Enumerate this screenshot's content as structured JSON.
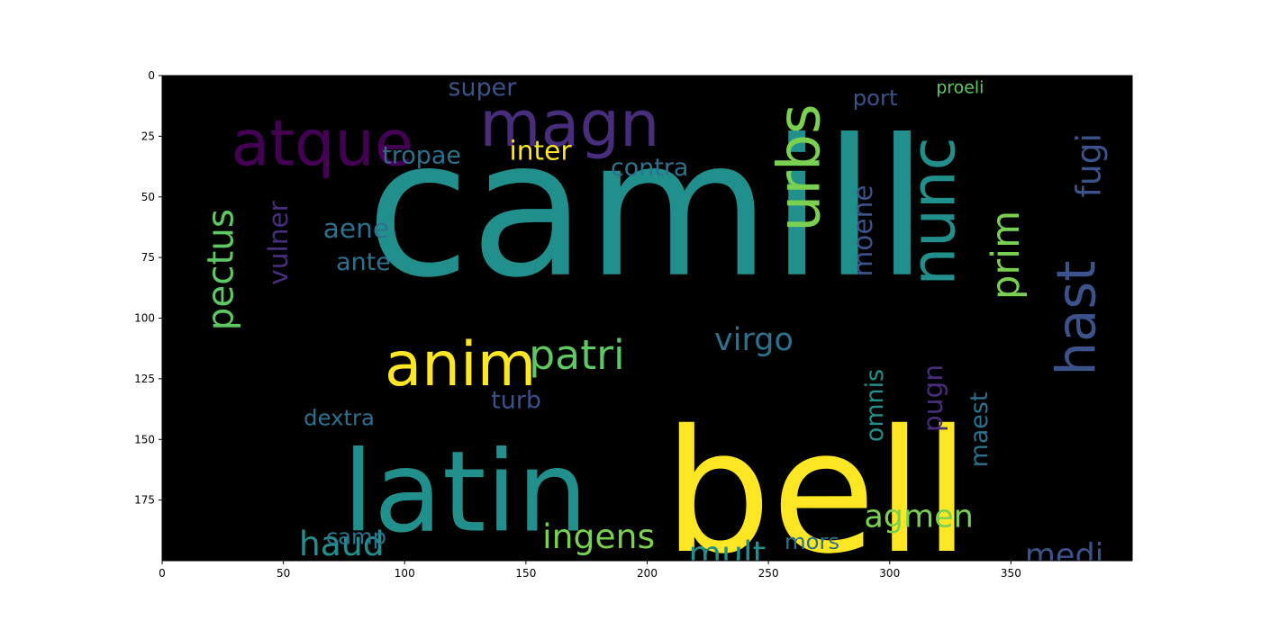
{
  "chart_data": {
    "type": "image",
    "title": "",
    "xlabel": "",
    "ylabel": "",
    "xlim": [
      0,
      400
    ],
    "ylim": [
      200,
      0
    ],
    "x_ticks": [
      0,
      50,
      100,
      150,
      200,
      250,
      300,
      350
    ],
    "y_ticks": [
      0,
      25,
      50,
      75,
      100,
      125,
      150,
      175
    ],
    "grid": false,
    "background_color": "#000000",
    "words": [
      {
        "text": "camill",
        "size": 78,
        "x": 200,
        "y": 55,
        "rotate": 0,
        "color": "#21908d"
      },
      {
        "text": "bell",
        "size": 70,
        "x": 270,
        "y": 172,
        "rotate": 0,
        "color": "#fde725"
      },
      {
        "text": "latin",
        "size": 46,
        "x": 125,
        "y": 172,
        "rotate": 0,
        "color": "#21908d"
      },
      {
        "text": "atque",
        "size": 26,
        "x": 66,
        "y": 28,
        "rotate": 0,
        "color": "#440154"
      },
      {
        "text": "magn",
        "size": 26,
        "x": 168,
        "y": 20,
        "rotate": 0,
        "color": "#472d7b"
      },
      {
        "text": "urbs",
        "size": 24,
        "x": 263,
        "y": 38,
        "rotate": -90,
        "color": "#7ad151"
      },
      {
        "text": "nunc",
        "size": 25,
        "x": 318,
        "y": 56,
        "rotate": -90,
        "color": "#21908d"
      },
      {
        "text": "anim",
        "size": 25,
        "x": 123,
        "y": 119,
        "rotate": 0,
        "color": "#fde725"
      },
      {
        "text": "patri",
        "size": 17,
        "x": 171,
        "y": 115,
        "rotate": 0,
        "color": "#5ec962"
      },
      {
        "text": "hast",
        "size": 22,
        "x": 377,
        "y": 100,
        "rotate": -90,
        "color": "#3b528b"
      },
      {
        "text": "virgo",
        "size": 13,
        "x": 244,
        "y": 109,
        "rotate": 0,
        "color": "#2c728e"
      },
      {
        "text": "pectus",
        "size": 15,
        "x": 24,
        "y": 80,
        "rotate": -90,
        "color": "#5ec962"
      },
      {
        "text": "vulner",
        "size": 11,
        "x": 48,
        "y": 69,
        "rotate": -90,
        "color": "#472d7b"
      },
      {
        "text": "haud",
        "size": 14,
        "x": 74,
        "y": 193,
        "rotate": 0,
        "color": "#21908d"
      },
      {
        "text": "ingens",
        "size": 14,
        "x": 180,
        "y": 190,
        "rotate": 0,
        "color": "#7ad151"
      },
      {
        "text": "mult",
        "size": 14,
        "x": 233,
        "y": 197,
        "rotate": 0,
        "color": "#21908d"
      },
      {
        "text": "agmen",
        "size": 13,
        "x": 312,
        "y": 182,
        "rotate": 0,
        "color": "#7ad151"
      },
      {
        "text": "medi",
        "size": 13,
        "x": 372,
        "y": 198,
        "rotate": 0,
        "color": "#3b528b"
      },
      {
        "text": "prim",
        "size": 16,
        "x": 348,
        "y": 74,
        "rotate": -90,
        "color": "#7ad151"
      },
      {
        "text": "fugi",
        "size": 14,
        "x": 382,
        "y": 37,
        "rotate": -90,
        "color": "#3b528b"
      },
      {
        "text": "pugn",
        "size": 11,
        "x": 318,
        "y": 133,
        "rotate": -90,
        "color": "#472d7b"
      },
      {
        "text": "maest",
        "size": 10,
        "x": 337,
        "y": 146,
        "rotate": -90,
        "color": "#2c728e"
      },
      {
        "text": "omnis",
        "size": 10,
        "x": 294,
        "y": 136,
        "rotate": -90,
        "color": "#21908d"
      },
      {
        "text": "moene",
        "size": 11,
        "x": 289,
        "y": 64,
        "rotate": -90,
        "color": "#3b528b"
      },
      {
        "text": "inter",
        "size": 11,
        "x": 156,
        "y": 31,
        "rotate": 0,
        "color": "#fde725"
      },
      {
        "text": "tropae",
        "size": 10,
        "x": 107,
        "y": 33,
        "rotate": 0,
        "color": "#2c728e"
      },
      {
        "text": "super",
        "size": 10,
        "x": 132,
        "y": 5,
        "rotate": 0,
        "color": "#3b528b"
      },
      {
        "text": "contra",
        "size": 10,
        "x": 201,
        "y": 38,
        "rotate": 0,
        "color": "#2c728e"
      },
      {
        "text": "port",
        "size": 9,
        "x": 294,
        "y": 9,
        "rotate": 0,
        "color": "#3b528b"
      },
      {
        "text": "aene",
        "size": 11,
        "x": 80,
        "y": 63,
        "rotate": 0,
        "color": "#2c728e"
      },
      {
        "text": "ante",
        "size": 10,
        "x": 83,
        "y": 77,
        "rotate": 0,
        "color": "#2c728e"
      },
      {
        "text": "dextra",
        "size": 9,
        "x": 73,
        "y": 141,
        "rotate": 0,
        "color": "#2c728e"
      },
      {
        "text": "turb",
        "size": 10,
        "x": 146,
        "y": 134,
        "rotate": 0,
        "color": "#3b528b"
      },
      {
        "text": "camp",
        "size": 9,
        "x": 80,
        "y": 190,
        "rotate": 0,
        "color": "#2c728e"
      },
      {
        "text": "mors",
        "size": 9,
        "x": 268,
        "y": 192,
        "rotate": 0,
        "color": "#2c728e"
      },
      {
        "text": "proeli",
        "size": 7,
        "x": 329,
        "y": 5,
        "rotate": 0,
        "color": "#5ec962"
      }
    ]
  }
}
